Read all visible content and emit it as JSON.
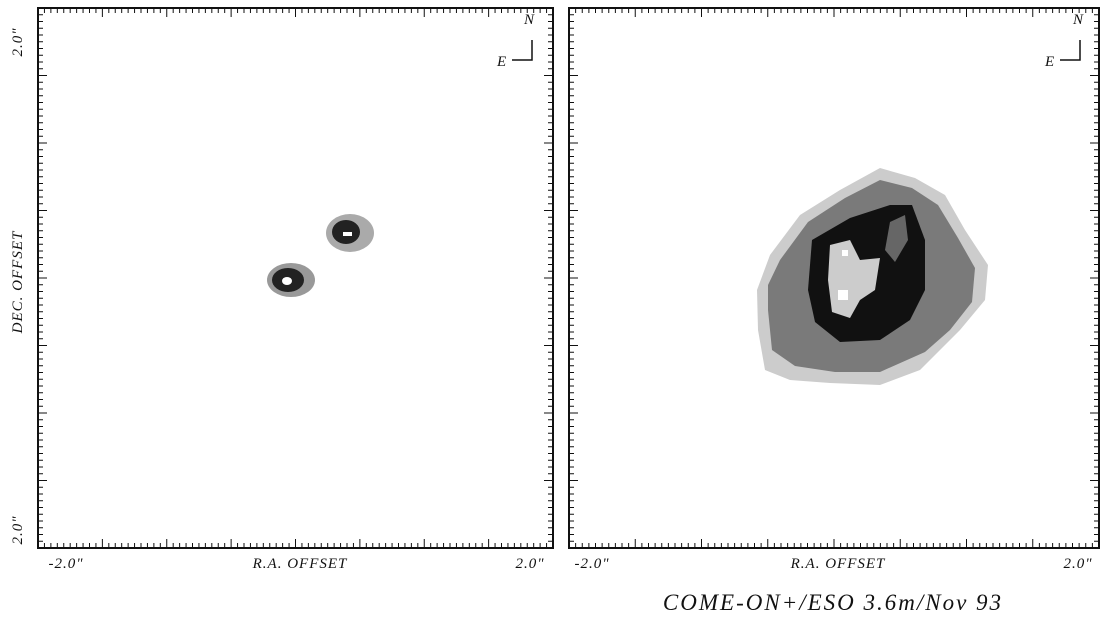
{
  "panels": [
    {
      "x_axis": {
        "label": "R.A. OFFSET",
        "min": "-2.0\"",
        "max": "2.0\""
      },
      "y_axis": {
        "label": "DEC. OFFSET",
        "max": "2.0\"",
        "min": "2.0\""
      },
      "compass": {
        "north": "N",
        "east": "E"
      }
    },
    {
      "x_axis": {
        "label": "R.A. OFFSET",
        "min": "-2.0\"",
        "max": "2.0\""
      },
      "compass": {
        "north": "N",
        "east": "E"
      }
    }
  ],
  "caption": "COME-ON+/ESO 3.6m/Nov 93"
}
